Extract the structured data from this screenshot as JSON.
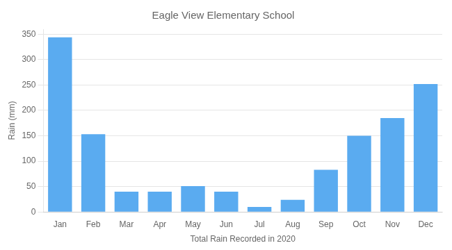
{
  "chart_data": {
    "type": "bar",
    "title": "Eagle View Elementary School",
    "x_label": "Total Rain Recorded in 2020",
    "y_label": "Rain (mm)",
    "categories": [
      "Jan",
      "Feb",
      "Mar",
      "Apr",
      "May",
      "Jun",
      "Jul",
      "Aug",
      "Sep",
      "Oct",
      "Nov",
      "Dec"
    ],
    "values": [
      344,
      153,
      40,
      40,
      51,
      40,
      10,
      24,
      83,
      150,
      185,
      252
    ],
    "color": "#5aabf0",
    "ylim": [
      0,
      360
    ],
    "yticks": [
      0,
      50,
      100,
      150,
      200,
      250,
      300,
      350
    ],
    "grid": "y"
  }
}
